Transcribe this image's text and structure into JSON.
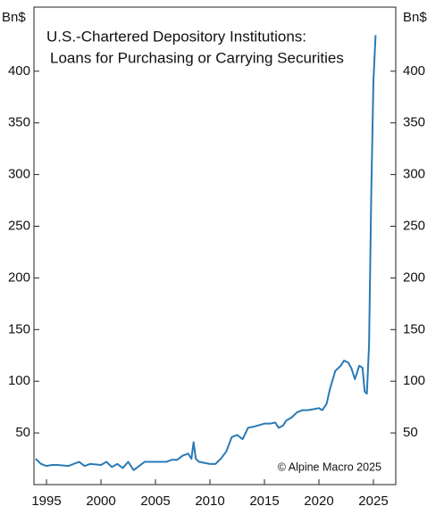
{
  "chart_data": {
    "type": "line",
    "title": "U.S.-Chartered Depository Institutions:",
    "subtitle": "Loans for Purchasing or Carrying Securities",
    "ylabel": "Bn$",
    "y2label": "Bn$",
    "annotation": "© Alpine Macro 2025",
    "x": [
      1994,
      1994.5,
      1995,
      1995.5,
      1996,
      1997,
      1997.5,
      1998,
      1998.5,
      1999,
      2000,
      2000.5,
      2001,
      2001.5,
      2002,
      2002.5,
      2003,
      2003.5,
      2004,
      2005,
      2006,
      2006.5,
      2007,
      2007.5,
      2008,
      2008.3,
      2008.5,
      2008.7,
      2009,
      2010,
      2010.5,
      2011,
      2011.5,
      2012,
      2012.5,
      2013,
      2013.5,
      2014,
      2015,
      2015.5,
      2016,
      2016.3,
      2016.7,
      2017,
      2017.5,
      2018,
      2018.5,
      2019,
      2019.5,
      2020,
      2020.3,
      2020.7,
      2021,
      2021.5,
      2022,
      2022.3,
      2022.7,
      2023,
      2023.3,
      2023.7,
      2024,
      2024.2,
      2024.4,
      2024.6,
      2024.8,
      2025,
      2025.2
    ],
    "series": [
      {
        "color": "#2a7ab5",
        "values": [
          25,
          20,
          18,
          19,
          19,
          18,
          20,
          22,
          18,
          20,
          19,
          22,
          17,
          20,
          16,
          22,
          14,
          18,
          22,
          22,
          22,
          24,
          24,
          28,
          30,
          25,
          41,
          25,
          22,
          20,
          20,
          25,
          32,
          46,
          48,
          44,
          55,
          56,
          59,
          59,
          60,
          55,
          57,
          62,
          65,
          70,
          72,
          72,
          73,
          74,
          72,
          78,
          92,
          110,
          115,
          120,
          118,
          112,
          102,
          115,
          113,
          90,
          88,
          135,
          280,
          390,
          435
        ]
      }
    ],
    "xlim": [
      1993.85,
      2027.05
    ],
    "xticks": [
      1995,
      2000,
      2005,
      2010,
      2015,
      2020,
      2025
    ],
    "ylim": [
      0,
      462
    ],
    "yticks": [
      50,
      100,
      150,
      200,
      250,
      300,
      350,
      400
    ],
    "y2lim": [
      0,
      462
    ],
    "y2ticks": [
      50,
      100,
      150,
      200,
      250,
      300,
      350,
      400
    ]
  }
}
